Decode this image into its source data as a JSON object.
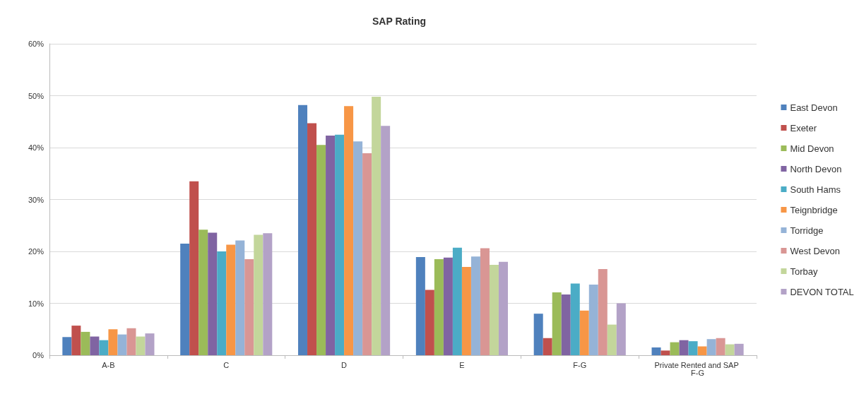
{
  "chart_data": {
    "type": "bar",
    "title": "SAP Rating",
    "categories": [
      "A-B",
      "C",
      "D",
      "E",
      "F-G",
      "Private Rented and SAP F-G"
    ],
    "series": [
      {
        "name": "East Devon",
        "color": "#4f81bd",
        "values": [
          3.5,
          21.5,
          48.2,
          18.9,
          8.0,
          1.5
        ]
      },
      {
        "name": "Exeter",
        "color": "#c0504d",
        "values": [
          5.7,
          33.5,
          44.7,
          12.6,
          3.3,
          0.9
        ]
      },
      {
        "name": "Mid Devon",
        "color": "#9bbb59",
        "values": [
          4.5,
          24.2,
          40.5,
          18.5,
          12.1,
          2.5
        ]
      },
      {
        "name": "North Devon",
        "color": "#8064a2",
        "values": [
          3.6,
          23.6,
          42.3,
          18.8,
          11.7,
          2.9
        ]
      },
      {
        "name": "South Hams",
        "color": "#4bacc6",
        "values": [
          2.9,
          20.0,
          42.5,
          20.7,
          13.8,
          2.7
        ]
      },
      {
        "name": "Teignbridge",
        "color": "#f79646",
        "values": [
          5.0,
          21.3,
          48.0,
          17.0,
          8.6,
          1.7
        ]
      },
      {
        "name": "Torridge",
        "color": "#95b3d7",
        "values": [
          4.0,
          22.1,
          41.2,
          19.0,
          13.6,
          3.1
        ]
      },
      {
        "name": "West Devon",
        "color": "#d99694",
        "values": [
          5.2,
          18.5,
          38.9,
          20.6,
          16.6,
          3.3
        ]
      },
      {
        "name": "Torbay",
        "color": "#c3d69b",
        "values": [
          3.6,
          23.2,
          49.8,
          17.4,
          5.9,
          2.1
        ]
      },
      {
        "name": "DEVON TOTAL",
        "color": "#b3a2c7",
        "values": [
          4.2,
          23.5,
          44.2,
          18.0,
          10.0,
          2.2
        ]
      }
    ],
    "ylim": [
      0,
      60
    ],
    "yticks": [
      {
        "value": 0,
        "label": "0%"
      },
      {
        "value": 10,
        "label": "10%"
      },
      {
        "value": 20,
        "label": "20%"
      },
      {
        "value": 30,
        "label": "30%"
      },
      {
        "value": 40,
        "label": "40%"
      },
      {
        "value": 50,
        "label": "50%"
      },
      {
        "value": 60,
        "label": "60%"
      }
    ],
    "grid": "y",
    "legend": "right"
  }
}
